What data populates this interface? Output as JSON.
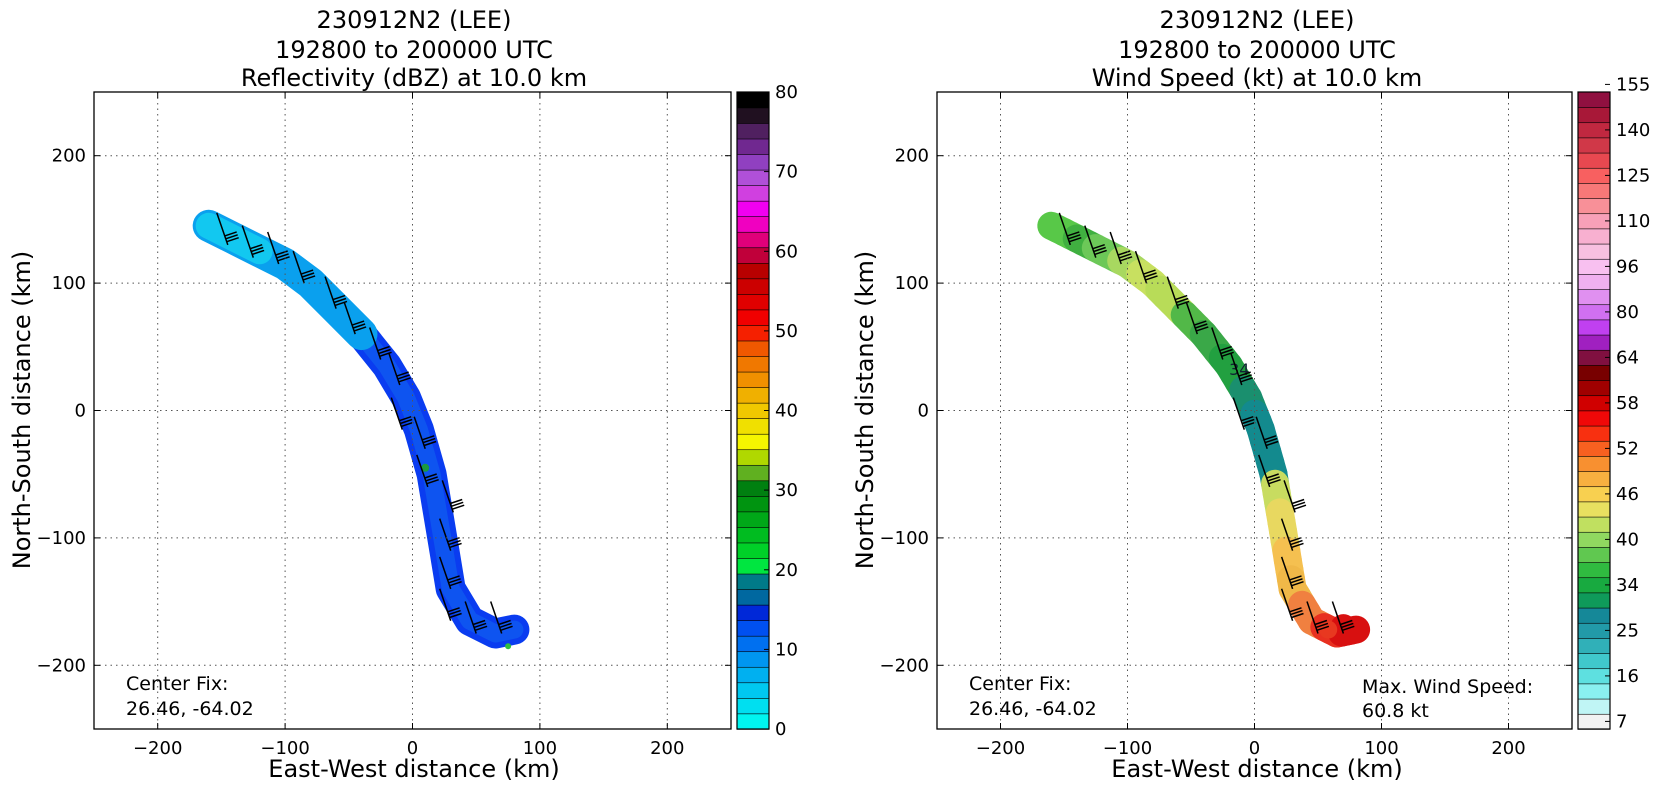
{
  "chart_data": [
    {
      "type": "heatmap",
      "title_lines": [
        "230912N2 (LEE)",
        "192800 to 200000 UTC",
        "Reflectivity (dBZ) at 10.0 km"
      ],
      "xlabel": "East-West distance (km)",
      "ylabel": "North-South distance (km)",
      "xlim": [
        -250,
        250
      ],
      "ylim": [
        -250,
        250
      ],
      "xticks": [
        -200,
        -100,
        0,
        100,
        200
      ],
      "yticks": [
        200,
        100,
        0,
        -100,
        -200
      ],
      "xtick_labels": [
        "−200",
        "−100",
        "0",
        "100",
        "200"
      ],
      "ytick_labels": [
        "200",
        "100",
        "0",
        "−100",
        "−200"
      ],
      "grid": true,
      "annotation_lines": [
        "Center Fix:",
        "26.46, -64.02"
      ],
      "colorbar": {
        "min": 0,
        "max": 80,
        "ticks": [
          "0",
          "10",
          "20",
          "30",
          "40",
          "50",
          "60",
          "70",
          "80"
        ],
        "colors": [
          "#00f5f0",
          "#00dff0",
          "#00c8f0",
          "#00b0f0",
          "#0096f0",
          "#0070f0",
          "#0050f0",
          "#0028d8",
          "#0068a0",
          "#007a88",
          "#00e640",
          "#00d028",
          "#00bc20",
          "#00a818",
          "#009410",
          "#008010",
          "#60b020",
          "#b0d800",
          "#f5f500",
          "#f0e000",
          "#f0c800",
          "#f0b000",
          "#f09000",
          "#f07800",
          "#f05800",
          "#f52000",
          "#f00000",
          "#e00000",
          "#cc0000",
          "#b80000",
          "#c0003a",
          "#e0007a",
          "#f000c0",
          "#f000f0",
          "#d040e0",
          "#b050d8",
          "#9040c0",
          "#702890",
          "#502060",
          "#201020",
          "#000000"
        ]
      },
      "shading": {
        "base": "#0a3cf0",
        "mid": "#0f5af0",
        "light": "#0aa0ee",
        "top": "#12c8f0",
        "patch": "#1a9a40"
      },
      "track": [
        [
          -160,
          145
        ],
        [
          -140,
          135
        ],
        [
          -120,
          125
        ],
        [
          -100,
          115
        ],
        [
          -80,
          100
        ],
        [
          -60,
          80
        ],
        [
          -40,
          60
        ],
        [
          -20,
          35
        ],
        [
          -5,
          10
        ],
        [
          5,
          -15
        ],
        [
          15,
          -50
        ],
        [
          20,
          -80
        ],
        [
          25,
          -110
        ],
        [
          30,
          -140
        ],
        [
          45,
          -165
        ],
        [
          65,
          -175
        ],
        [
          80,
          -172
        ]
      ],
      "barbs": [
        [
          -145,
          130
        ],
        [
          -125,
          120
        ],
        [
          -105,
          115
        ],
        [
          -85,
          100
        ],
        [
          -60,
          80
        ],
        [
          -45,
          60
        ],
        [
          -25,
          40
        ],
        [
          -10,
          20
        ],
        [
          -8,
          -15
        ],
        [
          10,
          -30
        ],
        [
          12,
          -60
        ],
        [
          32,
          -80
        ],
        [
          30,
          -110
        ],
        [
          30,
          -140
        ],
        [
          30,
          -165
        ],
        [
          50,
          -175
        ],
        [
          70,
          -175
        ]
      ]
    },
    {
      "type": "heatmap",
      "title_lines": [
        "230912N2 (LEE)",
        "192800 to 200000 UTC",
        "Wind Speed (kt) at 10.0 km"
      ],
      "xlabel": "East-West distance (km)",
      "ylabel": "North-South distance (km)",
      "xlim": [
        -250,
        250
      ],
      "ylim": [
        -250,
        250
      ],
      "xticks": [
        -200,
        -100,
        0,
        100,
        200
      ],
      "yticks": [
        200,
        100,
        0,
        -100,
        -200
      ],
      "xtick_labels": [
        "−200",
        "−100",
        "0",
        "100",
        "200"
      ],
      "ytick_labels": [
        "200",
        "100",
        "0",
        "−100",
        "−200"
      ],
      "grid": true,
      "annotation_lines": [
        "Center Fix:",
        "26.46, -64.02"
      ],
      "annotation2_lines": [
        "Max. Wind Speed:",
        "60.8 kt"
      ],
      "contour_label": "34",
      "contour_label_pos": [
        -20,
        28
      ],
      "colorbar": {
        "ticks": [
          "7",
          "16",
          "25",
          "34",
          "40",
          "46",
          "52",
          "58",
          "64",
          "80",
          "96",
          "110",
          "125",
          "140",
          "155"
        ],
        "colors": [
          "#f2f2f2",
          "#c0f5f5",
          "#8af0f0",
          "#5ee0e0",
          "#40c8cc",
          "#30b0b8",
          "#229aa8",
          "#158898",
          "#0f9a5a",
          "#18aa40",
          "#30bb40",
          "#60c850",
          "#90d860",
          "#c0e060",
          "#e8e060",
          "#f8d050",
          "#f8b040",
          "#f89030",
          "#f86020",
          "#f83010",
          "#f00808",
          "#d00000",
          "#a00000",
          "#780000",
          "#801040",
          "#a020c0",
          "#c040f0",
          "#d070f0",
          "#e090f0",
          "#f0b0f0",
          "#f8c0f0",
          "#f8c0e0",
          "#f8b0d0",
          "#f8a0b8",
          "#f89098",
          "#f87878",
          "#f86060",
          "#e84850",
          "#d03848",
          "#c02840",
          "#a81838",
          "#901040"
        ]
      },
      "segments_colors": [
        "#58c848",
        "#40b040",
        "#6cc858",
        "#a8d860",
        "#c8e060",
        "#b8dc58",
        "#52b848",
        "#3aa848",
        "#22a040",
        "#1a8f6e",
        "#138a8e",
        "#138a8e",
        "#c8dc60",
        "#e8d860",
        "#f5c050",
        "#f0b848",
        "#f08040",
        "#e83020",
        "#d81010"
      ],
      "track": [
        [
          -160,
          145
        ],
        [
          -140,
          135
        ],
        [
          -120,
          125
        ],
        [
          -100,
          115
        ],
        [
          -80,
          100
        ],
        [
          -60,
          80
        ],
        [
          -40,
          60
        ],
        [
          -20,
          35
        ],
        [
          -5,
          10
        ],
        [
          5,
          -15
        ],
        [
          15,
          -50
        ],
        [
          20,
          -80
        ],
        [
          25,
          -110
        ],
        [
          30,
          -140
        ],
        [
          45,
          -165
        ],
        [
          65,
          -175
        ],
        [
          80,
          -172
        ]
      ],
      "barbs": [
        [
          -145,
          130
        ],
        [
          -125,
          120
        ],
        [
          -105,
          115
        ],
        [
          -85,
          100
        ],
        [
          -60,
          80
        ],
        [
          -45,
          60
        ],
        [
          -25,
          40
        ],
        [
          -10,
          20
        ],
        [
          -8,
          -15
        ],
        [
          10,
          -30
        ],
        [
          12,
          -60
        ],
        [
          32,
          -80
        ],
        [
          30,
          -110
        ],
        [
          30,
          -140
        ],
        [
          30,
          -165
        ],
        [
          50,
          -175
        ],
        [
          70,
          -175
        ]
      ]
    }
  ]
}
